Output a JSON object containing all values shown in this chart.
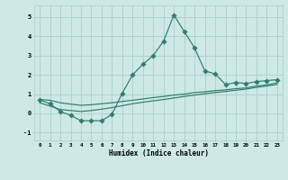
{
  "x": [
    0,
    1,
    2,
    3,
    4,
    5,
    6,
    7,
    8,
    9,
    10,
    11,
    12,
    13,
    14,
    15,
    16,
    17,
    18,
    19,
    20,
    21,
    22,
    23
  ],
  "y_main": [
    0.7,
    0.5,
    0.1,
    -0.1,
    -0.38,
    -0.38,
    -0.38,
    -0.05,
    1.05,
    2.0,
    2.55,
    3.0,
    3.75,
    5.1,
    4.25,
    3.4,
    2.2,
    2.05,
    1.5,
    1.6,
    1.55,
    1.65,
    1.7,
    1.75
  ],
  "y_trend1": [
    0.72,
    0.68,
    0.55,
    0.48,
    0.42,
    0.45,
    0.5,
    0.55,
    0.62,
    0.68,
    0.75,
    0.82,
    0.88,
    0.95,
    1.0,
    1.08,
    1.12,
    1.18,
    1.22,
    1.28,
    1.32,
    1.42,
    1.48,
    1.58
  ],
  "y_trend2": [
    0.55,
    0.38,
    0.2,
    0.15,
    0.1,
    0.15,
    0.22,
    0.3,
    0.4,
    0.5,
    0.58,
    0.65,
    0.72,
    0.8,
    0.88,
    0.95,
    1.02,
    1.08,
    1.14,
    1.2,
    1.26,
    1.35,
    1.42,
    1.5
  ],
  "line_color": "#2e7d6e",
  "bg_color": "#cde8e5",
  "grid_color": "#aacfcc",
  "xlabel": "Humidex (Indice chaleur)",
  "xlim": [
    -0.5,
    23.5
  ],
  "ylim": [
    -1.4,
    5.6
  ],
  "yticks": [
    -1,
    0,
    1,
    2,
    3,
    4,
    5
  ],
  "xticks": [
    0,
    1,
    2,
    3,
    4,
    5,
    6,
    7,
    8,
    9,
    10,
    11,
    12,
    13,
    14,
    15,
    16,
    17,
    18,
    19,
    20,
    21,
    22,
    23
  ],
  "xtick_labels": [
    "0",
    "1",
    "2",
    "3",
    "4",
    "5",
    "6",
    "7",
    "8",
    "9",
    "10",
    "11",
    "12",
    "13",
    "14",
    "15",
    "16",
    "17",
    "18",
    "19",
    "20",
    "21",
    "22",
    "23"
  ],
  "markersize": 2.8,
  "linewidth": 0.85
}
